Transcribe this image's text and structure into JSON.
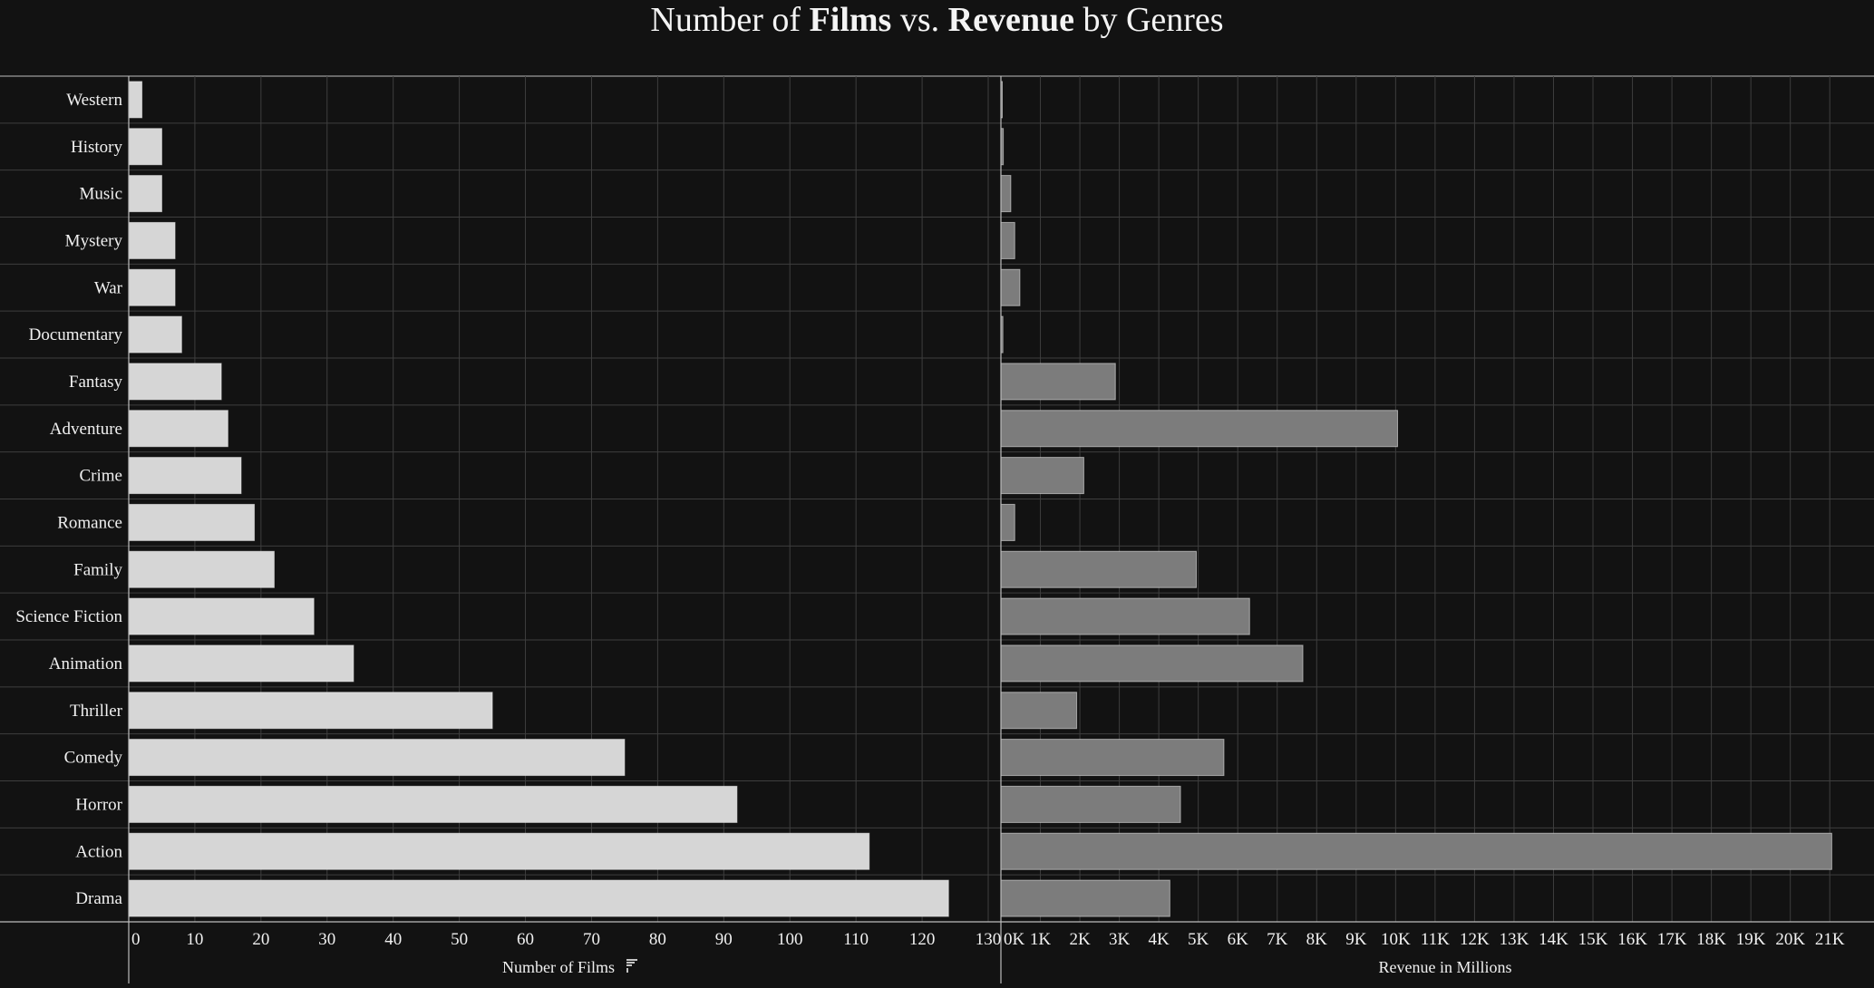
{
  "title": {
    "part1": "Number of ",
    "part2": "Films",
    "part3": " vs. ",
    "part4": "Revenue",
    "part5": " by Genres"
  },
  "chart_data": {
    "type": "bar",
    "orientation": "horizontal",
    "categories": [
      "Western",
      "History",
      "Music",
      "Mystery",
      "War",
      "Documentary",
      "Fantasy",
      "Adventure",
      "Crime",
      "Romance",
      "Family",
      "Science Fiction",
      "Animation",
      "Thriller",
      "Comedy",
      "Horror",
      "Action",
      "Drama"
    ],
    "panels": [
      {
        "series_name": "Number of Films",
        "xlabel": "Number of Films",
        "sort_icon": "sort-descending-icon",
        "xlim": [
          0,
          130
        ],
        "ticks": [
          0,
          10,
          20,
          30,
          40,
          50,
          60,
          70,
          80,
          90,
          100,
          110,
          120,
          130
        ],
        "tick_labels": [
          "0",
          "10",
          "20",
          "30",
          "40",
          "50",
          "60",
          "70",
          "80",
          "90",
          "100",
          "110",
          "120",
          "130"
        ],
        "values": [
          2,
          5,
          5,
          7,
          7,
          8,
          14,
          15,
          17,
          19,
          22,
          28,
          34,
          55,
          75,
          92,
          112,
          124
        ],
        "color": "#d6d6d6"
      },
      {
        "series_name": "Revenue in Millions",
        "xlabel": "Revenue in Millions",
        "xlim": [
          0,
          21500
        ],
        "ticks": [
          0,
          1000,
          2000,
          3000,
          4000,
          5000,
          6000,
          7000,
          8000,
          9000,
          10000,
          11000,
          12000,
          13000,
          14000,
          15000,
          16000,
          17000,
          18000,
          19000,
          20000,
          21000
        ],
        "tick_labels": [
          "0K",
          "1K",
          "2K",
          "3K",
          "4K",
          "5K",
          "6K",
          "7K",
          "8K",
          "9K",
          "10K",
          "11K",
          "12K",
          "13K",
          "14K",
          "15K",
          "16K",
          "17K",
          "18K",
          "19K",
          "20K",
          "21K"
        ],
        "values": [
          30,
          60,
          250,
          350,
          480,
          50,
          2900,
          10050,
          2100,
          350,
          4950,
          6300,
          7650,
          1920,
          5650,
          4550,
          21050,
          4280
        ],
        "color": "#7c7c7c"
      }
    ],
    "grid": true,
    "legend": "none"
  },
  "colors": {
    "background": "#121212",
    "grid": "#3e3e3e",
    "axis": "#bdbdbd",
    "films_bar": "#d6d6d6",
    "revenue_bar": "#7c7c7c"
  }
}
